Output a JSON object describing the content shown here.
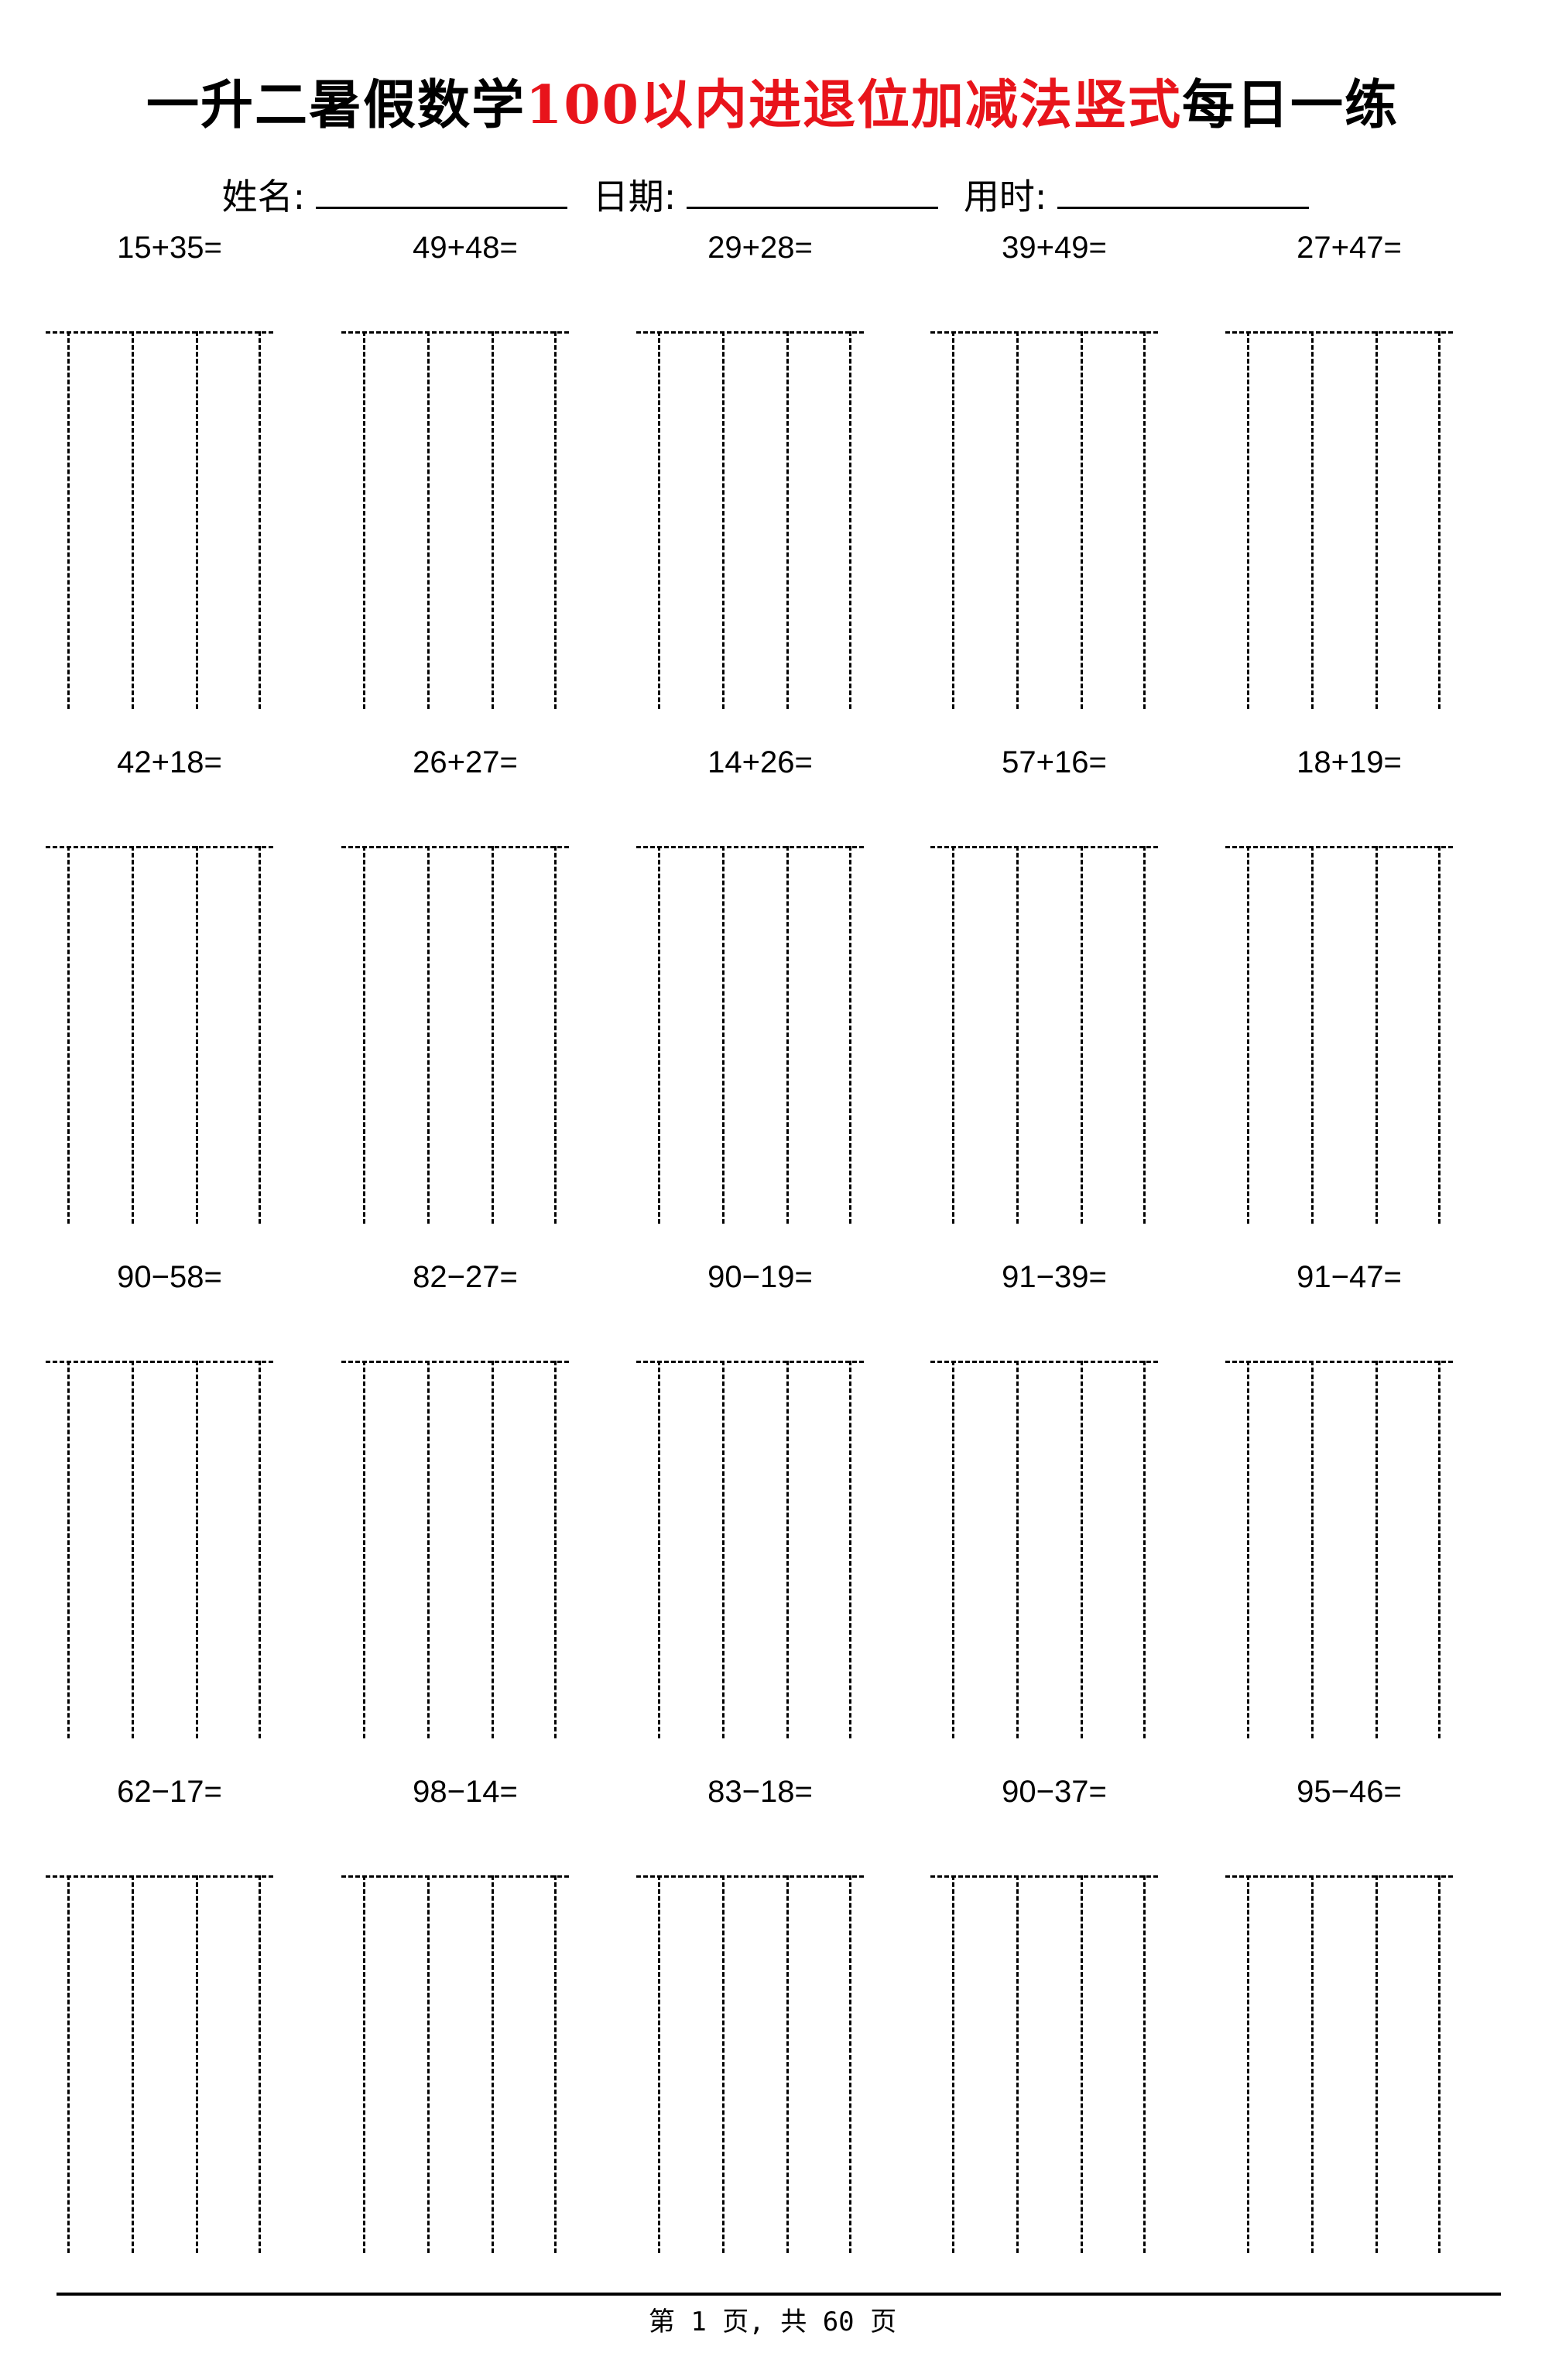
{
  "title": {
    "prefix": "一升二暑假数学",
    "highlight": "100以内进退位加减法竖式",
    "suffix": "每日一练",
    "highlight_color": "#e8141b"
  },
  "info": {
    "name_label": "姓名:",
    "date_label": "日期:",
    "time_label": "用时:"
  },
  "problems": [
    [
      "15+35=",
      "49+48=",
      "29+28=",
      "39+49=",
      "27+47="
    ],
    [
      "42+18=",
      "26+27=",
      "14+26=",
      "57+16=",
      "18+19="
    ],
    [
      "90−58=",
      "82−27=",
      "90−19=",
      "91−39=",
      "91−47="
    ],
    [
      "62−17=",
      "98−14=",
      "83−18=",
      "90−37=",
      "95−46="
    ]
  ],
  "footer": {
    "page_text": "第 1 页, 共 60 页"
  }
}
